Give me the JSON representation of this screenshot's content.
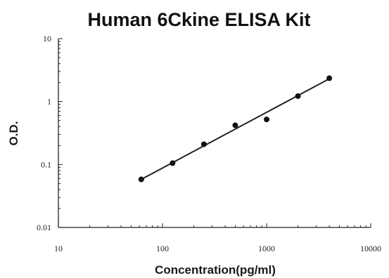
{
  "chart_data": {
    "type": "scatter",
    "title": "Human 6Ckine ELISA Kit",
    "xlabel": "Concentration(pg/ml)",
    "ylabel": "O.D.",
    "x_scale": "log",
    "y_scale": "log",
    "xlim": [
      10,
      10000
    ],
    "ylim": [
      0.01,
      10
    ],
    "x_ticks": [
      "10",
      "100",
      "1000",
      "10000"
    ],
    "y_ticks": [
      "0.01",
      "0.1",
      "1",
      "10"
    ],
    "grid": false,
    "points": [
      {
        "x": 62.5,
        "y": 0.058
      },
      {
        "x": 125,
        "y": 0.105
      },
      {
        "x": 250,
        "y": 0.21
      },
      {
        "x": 500,
        "y": 0.42
      },
      {
        "x": 1000,
        "y": 0.52
      },
      {
        "x": 2000,
        "y": 1.22
      },
      {
        "x": 4000,
        "y": 2.35
      }
    ],
    "fit_line": {
      "x": [
        62.5,
        4000
      ],
      "y": [
        0.058,
        2.3
      ]
    },
    "colors": {
      "points": "#111111",
      "line": "#222222"
    }
  }
}
